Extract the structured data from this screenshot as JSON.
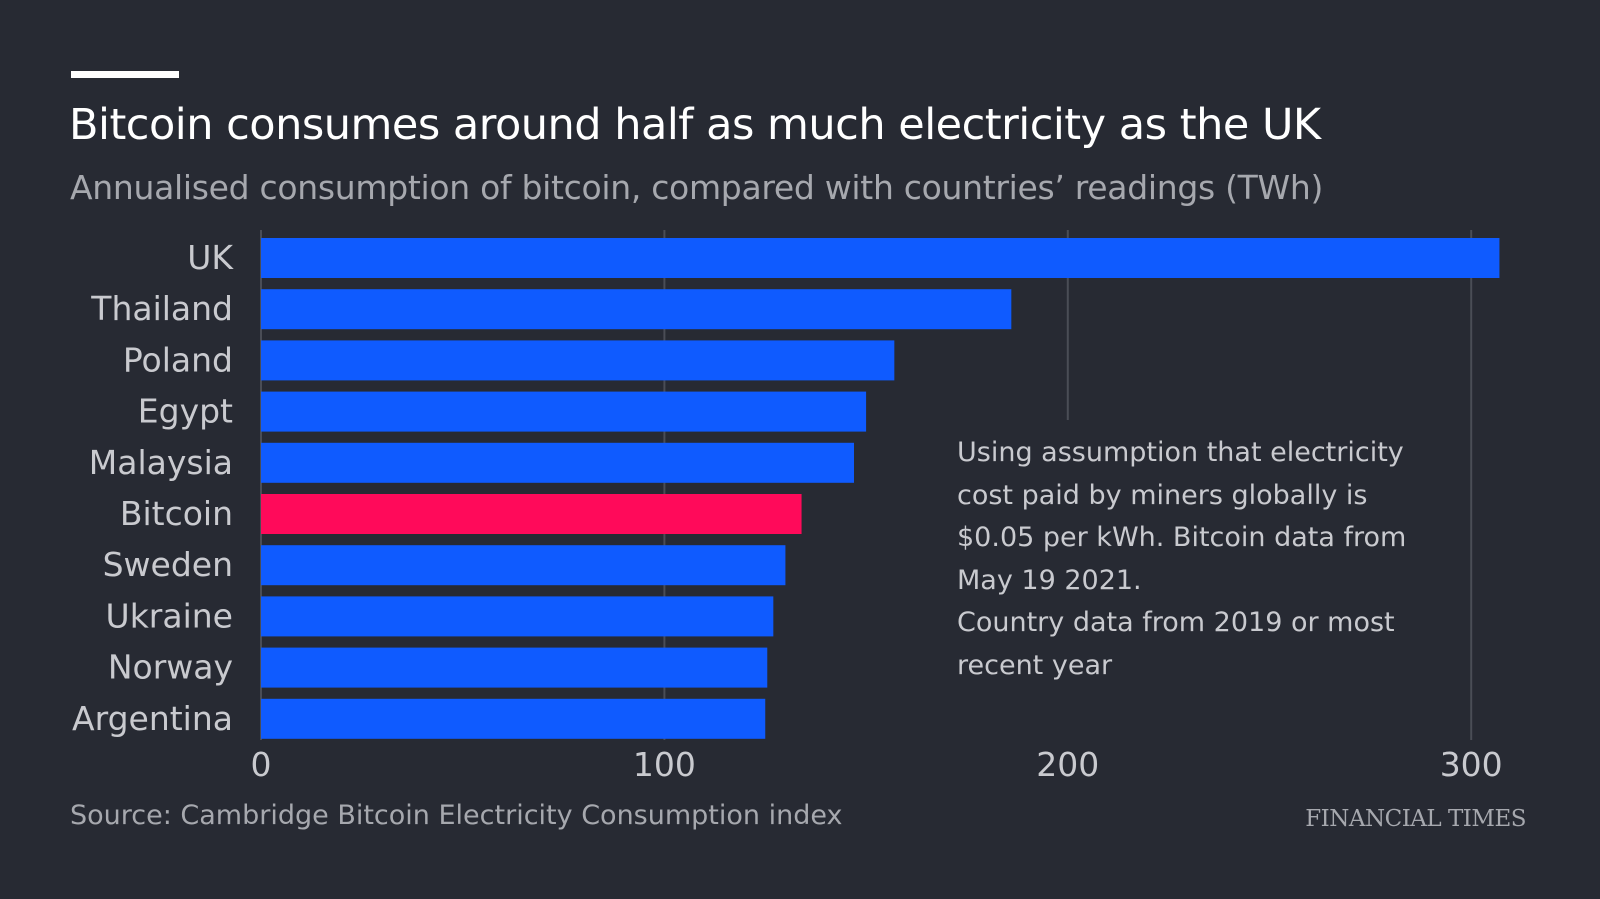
{
  "title": "Bitcoin consumes around half as much electricity as the UK",
  "subtitle": "Annualised consumption of bitcoin, compared with countries’ readings (TWh)",
  "note": {
    "line1": "Using assumption that electricity cost paid by miners globally is $0.05 per kWh. Bitcoin data from May 19 2021.",
    "line2": "Country data from 2019 or most recent year"
  },
  "source": "Source: Cambridge Bitcoin Electricity Consumption index",
  "brand": "FINANCIAL TIMES",
  "colors": {
    "background": "#272a33",
    "bar_default": "#0f5bff",
    "bar_highlight": "#ff0a5a",
    "gridline": "#4a4d56"
  },
  "chart_data": {
    "type": "bar",
    "orientation": "horizontal",
    "title": "Bitcoin consumes around half as much electricity as the UK",
    "subtitle": "Annualised consumption of bitcoin, compared with countries’ readings (TWh)",
    "categories": [
      "UK",
      "Thailand",
      "Poland",
      "Egypt",
      "Malaysia",
      "Bitcoin",
      "Sweden",
      "Ukraine",
      "Norway",
      "Argentina"
    ],
    "values": [
      307,
      186,
      157,
      150,
      147,
      134,
      130,
      127,
      125.5,
      125
    ],
    "highlight": "Bitcoin",
    "xlim": [
      0,
      300
    ],
    "xticks": [
      0,
      100,
      200,
      300
    ],
    "grid": true
  }
}
